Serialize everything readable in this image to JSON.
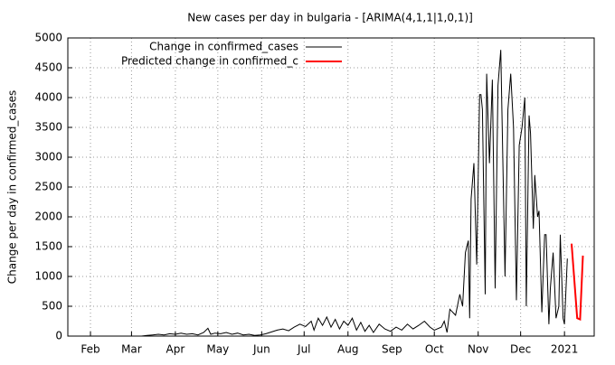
{
  "chart_data": {
    "type": "line",
    "title": "New cases per day in bulgaria -  [ARIMA(4,1,1|1,0,1)]",
    "y_label": "Change per day in confirmed_cases",
    "xlim": [
      16,
      388
    ],
    "xticks": [
      {
        "value": 32,
        "label": "Feb"
      },
      {
        "value": 61,
        "label": "Mar"
      },
      {
        "value": 92,
        "label": "Apr"
      },
      {
        "value": 122,
        "label": "May"
      },
      {
        "value": 153,
        "label": "Jun"
      },
      {
        "value": 183,
        "label": "Jul"
      },
      {
        "value": 214,
        "label": "Aug"
      },
      {
        "value": 245,
        "label": "Sep"
      },
      {
        "value": 275,
        "label": "Oct"
      },
      {
        "value": 306,
        "label": "Nov"
      },
      {
        "value": 336,
        "label": "Dec"
      },
      {
        "value": 367,
        "label": "2021"
      }
    ],
    "ylim": [
      0,
      5000
    ],
    "yticks": [
      0,
      500,
      1000,
      1500,
      2000,
      2500,
      3000,
      3500,
      4000,
      4500,
      5000
    ],
    "grid": true,
    "legend": "top-left",
    "series": [
      {
        "name": "Change in confirmed_cases",
        "color": "#000000",
        "x": [
          68,
          72,
          76,
          80,
          84,
          88,
          92,
          96,
          100,
          104,
          108,
          112,
          115,
          117,
          120,
          124,
          128,
          132,
          136,
          140,
          144,
          148,
          152,
          156,
          160,
          164,
          168,
          172,
          176,
          180,
          184,
          188,
          190,
          193,
          196,
          199,
          202,
          205,
          208,
          211,
          214,
          217,
          220,
          223,
          226,
          229,
          232,
          236,
          240,
          244,
          248,
          252,
          256,
          260,
          264,
          268,
          272,
          275,
          280,
          282,
          284,
          286,
          290,
          293,
          295,
          297,
          299,
          300,
          301,
          303,
          305,
          307,
          308,
          309,
          311,
          312,
          314,
          316,
          318,
          320,
          322,
          323,
          325,
          327,
          329,
          331,
          333,
          335,
          337,
          339,
          340,
          342,
          343,
          345,
          346,
          348,
          349,
          351,
          353,
          354,
          356,
          357,
          359,
          361,
          363,
          364,
          366,
          367,
          369
        ],
        "values": [
          0,
          10,
          20,
          30,
          20,
          40,
          30,
          50,
          30,
          40,
          20,
          60,
          130,
          30,
          50,
          40,
          60,
          30,
          50,
          20,
          30,
          10,
          20,
          40,
          70,
          100,
          120,
          90,
          150,
          200,
          160,
          250,
          100,
          300,
          180,
          320,
          150,
          280,
          120,
          250,
          180,
          300,
          100,
          230,
          80,
          180,
          60,
          200,
          120,
          80,
          150,
          100,
          200,
          120,
          180,
          250,
          150,
          100,
          150,
          250,
          60,
          450,
          350,
          700,
          500,
          1400,
          1600,
          300,
          2300,
          2900,
          1200,
          4050,
          4050,
          3800,
          700,
          4400,
          2900,
          4300,
          800,
          4200,
          4800,
          3500,
          1000,
          3800,
          4400,
          3500,
          600,
          3200,
          3500,
          4000,
          500,
          3700,
          3400,
          1800,
          2700,
          2000,
          2100,
          400,
          1700,
          1700,
          200,
          800,
          1400,
          300,
          500,
          1700,
          300,
          200,
          1300
        ]
      },
      {
        "name": "Predicted change in confirmed_c",
        "color": "#ff0000",
        "x": [
          372,
          376,
          378,
          380
        ],
        "values": [
          1550,
          300,
          280,
          1350
        ]
      }
    ]
  }
}
